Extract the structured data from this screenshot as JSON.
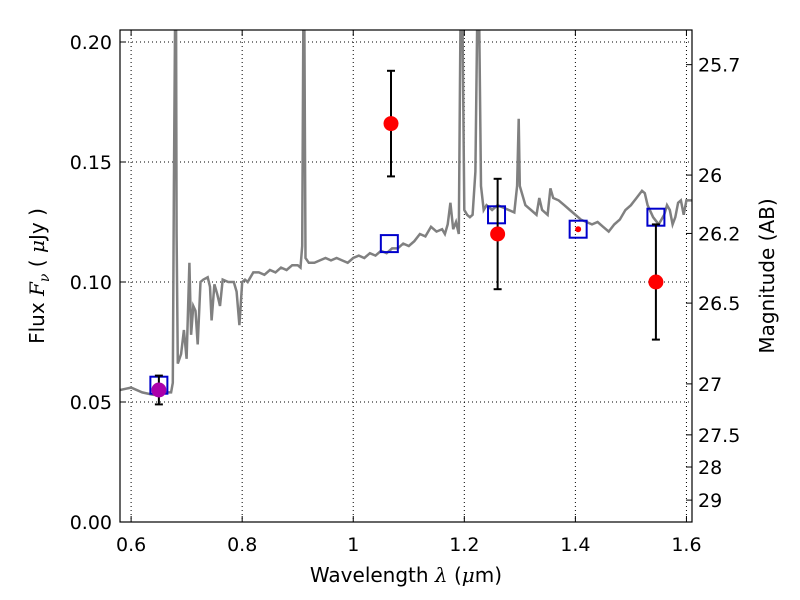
{
  "chart_data": {
    "type": "line",
    "xlabel": {
      "prefix": "Wavelength  ",
      "symbol": "λ",
      "unit_open": " (",
      "unit_mu": "μ",
      "unit_rest": "m)"
    },
    "ylabel": {
      "prefix": "Flux  ",
      "symbol": "F",
      "subscript": "ν",
      "unit_open": "  ( ",
      "unit_mu": "μ",
      "unit_rest": "Jy )"
    },
    "ylabel_right": "Magnitude (AB)",
    "xlim": [
      0.58,
      1.61
    ],
    "ylim": [
      0.0,
      0.205
    ],
    "grid": true,
    "x_ticks": [
      {
        "value": 0.6,
        "label": "0.6"
      },
      {
        "value": 0.8,
        "label": "0.8"
      },
      {
        "value": 1.0,
        "label": "1"
      },
      {
        "value": 1.2,
        "label": "1.2"
      },
      {
        "value": 1.4,
        "label": "1.4"
      },
      {
        "value": 1.6,
        "label": "1.6"
      }
    ],
    "y_ticks": [
      {
        "value": 0.0,
        "label": "0.00"
      },
      {
        "value": 0.05,
        "label": "0.05"
      },
      {
        "value": 0.1,
        "label": "0.10"
      },
      {
        "value": 0.15,
        "label": "0.15"
      },
      {
        "value": 0.2,
        "label": "0.20"
      }
    ],
    "right_ticks": [
      {
        "value": 25.7,
        "label": "25.7"
      },
      {
        "value": 26,
        "label": "26"
      },
      {
        "value": 26.2,
        "label": "26.2"
      },
      {
        "value": 26.5,
        "label": "26.5"
      },
      {
        "value": 27,
        "label": "27"
      },
      {
        "value": 27.5,
        "label": "27.5"
      },
      {
        "value": 28,
        "label": "28"
      },
      {
        "value": 29,
        "label": "29"
      }
    ],
    "series": [
      {
        "style": "model_spectrum",
        "color": "#808080",
        "points": [
          [
            0.58,
            0.055
          ],
          [
            0.6,
            0.056
          ],
          [
            0.62,
            0.054
          ],
          [
            0.64,
            0.053
          ],
          [
            0.66,
            0.054
          ],
          [
            0.672,
            0.054
          ],
          [
            0.675,
            0.058
          ],
          [
            0.677,
            0.14
          ],
          [
            0.679,
            0.205
          ],
          [
            0.681,
            0.205
          ],
          [
            0.682,
            0.12
          ],
          [
            0.684,
            0.066
          ],
          [
            0.69,
            0.07
          ],
          [
            0.695,
            0.08
          ],
          [
            0.7,
            0.068
          ],
          [
            0.705,
            0.108
          ],
          [
            0.708,
            0.078
          ],
          [
            0.712,
            0.09
          ],
          [
            0.716,
            0.088
          ],
          [
            0.72,
            0.074
          ],
          [
            0.725,
            0.1
          ],
          [
            0.73,
            0.101
          ],
          [
            0.738,
            0.102
          ],
          [
            0.742,
            0.098
          ],
          [
            0.745,
            0.084
          ],
          [
            0.75,
            0.099
          ],
          [
            0.755,
            0.095
          ],
          [
            0.76,
            0.09
          ],
          [
            0.765,
            0.101
          ],
          [
            0.775,
            0.1
          ],
          [
            0.785,
            0.1
          ],
          [
            0.79,
            0.096
          ],
          [
            0.795,
            0.082
          ],
          [
            0.8,
            0.1
          ],
          [
            0.805,
            0.101
          ],
          [
            0.81,
            0.1
          ],
          [
            0.82,
            0.104
          ],
          [
            0.83,
            0.104
          ],
          [
            0.84,
            0.103
          ],
          [
            0.85,
            0.105
          ],
          [
            0.86,
            0.104
          ],
          [
            0.87,
            0.106
          ],
          [
            0.88,
            0.105
          ],
          [
            0.89,
            0.107
          ],
          [
            0.9,
            0.107
          ],
          [
            0.905,
            0.106
          ],
          [
            0.908,
            0.115
          ],
          [
            0.91,
            0.205
          ],
          [
            0.912,
            0.205
          ],
          [
            0.914,
            0.11
          ],
          [
            0.92,
            0.108
          ],
          [
            0.93,
            0.108
          ],
          [
            0.94,
            0.109
          ],
          [
            0.95,
            0.11
          ],
          [
            0.96,
            0.109
          ],
          [
            0.97,
            0.11
          ],
          [
            0.98,
            0.109
          ],
          [
            0.99,
            0.108
          ],
          [
            1.0,
            0.11
          ],
          [
            1.01,
            0.111
          ],
          [
            1.02,
            0.11
          ],
          [
            1.03,
            0.112
          ],
          [
            1.04,
            0.111
          ],
          [
            1.05,
            0.113
          ],
          [
            1.06,
            0.112
          ],
          [
            1.07,
            0.114
          ],
          [
            1.08,
            0.114
          ],
          [
            1.09,
            0.116
          ],
          [
            1.1,
            0.115
          ],
          [
            1.11,
            0.117
          ],
          [
            1.12,
            0.12
          ],
          [
            1.13,
            0.119
          ],
          [
            1.14,
            0.123
          ],
          [
            1.15,
            0.121
          ],
          [
            1.16,
            0.122
          ],
          [
            1.165,
            0.12
          ],
          [
            1.17,
            0.124
          ],
          [
            1.175,
            0.133
          ],
          [
            1.18,
            0.122
          ],
          [
            1.185,
            0.125
          ],
          [
            1.19,
            0.12
          ],
          [
            1.193,
            0.205
          ],
          [
            1.197,
            0.205
          ],
          [
            1.2,
            0.13
          ],
          [
            1.205,
            0.128
          ],
          [
            1.21,
            0.127
          ],
          [
            1.215,
            0.128
          ],
          [
            1.22,
            0.146
          ],
          [
            1.223,
            0.205
          ],
          [
            1.227,
            0.205
          ],
          [
            1.23,
            0.14
          ],
          [
            1.235,
            0.13
          ],
          [
            1.24,
            0.132
          ],
          [
            1.25,
            0.13
          ],
          [
            1.26,
            0.132
          ],
          [
            1.27,
            0.131
          ],
          [
            1.28,
            0.13
          ],
          [
            1.29,
            0.129
          ],
          [
            1.295,
            0.14
          ],
          [
            1.298,
            0.168
          ],
          [
            1.3,
            0.14
          ],
          [
            1.31,
            0.132
          ],
          [
            1.32,
            0.13
          ],
          [
            1.33,
            0.128
          ],
          [
            1.335,
            0.135
          ],
          [
            1.34,
            0.13
          ],
          [
            1.35,
            0.128
          ],
          [
            1.355,
            0.139
          ],
          [
            1.36,
            0.135
          ],
          [
            1.37,
            0.134
          ],
          [
            1.38,
            0.132
          ],
          [
            1.39,
            0.13
          ],
          [
            1.4,
            0.128
          ],
          [
            1.41,
            0.126
          ],
          [
            1.42,
            0.125
          ],
          [
            1.43,
            0.124
          ],
          [
            1.44,
            0.125
          ],
          [
            1.45,
            0.123
          ],
          [
            1.46,
            0.121
          ],
          [
            1.47,
            0.124
          ],
          [
            1.48,
            0.126
          ],
          [
            1.49,
            0.13
          ],
          [
            1.5,
            0.132
          ],
          [
            1.51,
            0.135
          ],
          [
            1.52,
            0.138
          ],
          [
            1.525,
            0.137
          ],
          [
            1.53,
            0.132
          ],
          [
            1.54,
            0.127
          ],
          [
            1.55,
            0.124
          ],
          [
            1.56,
            0.128
          ],
          [
            1.565,
            0.132
          ],
          [
            1.57,
            0.13
          ],
          [
            1.575,
            0.124
          ],
          [
            1.58,
            0.127
          ],
          [
            1.585,
            0.133
          ],
          [
            1.59,
            0.134
          ],
          [
            1.595,
            0.128
          ],
          [
            1.6,
            0.134
          ],
          [
            1.61,
            0.134
          ]
        ]
      },
      {
        "style": "model_photometry_squares",
        "color": "#0000cc",
        "points": [
          [
            0.65,
            0.057
          ],
          [
            1.065,
            0.116
          ],
          [
            1.258,
            0.128
          ],
          [
            1.405,
            0.122
          ],
          [
            1.545,
            0.127
          ]
        ]
      },
      {
        "style": "observed_points",
        "points": [
          {
            "x": 0.65,
            "y": 0.055,
            "err": 0.006,
            "color": "#aa00aa"
          },
          {
            "x": 1.068,
            "y": 0.166,
            "err": 0.022,
            "color": "#ff0000"
          },
          {
            "x": 1.26,
            "y": 0.12,
            "err": 0.023,
            "color": "#ff0000"
          },
          {
            "x": 1.405,
            "y": 0.122,
            "err": 0,
            "color": "#ff0000",
            "small": true
          },
          {
            "x": 1.545,
            "y": 0.1,
            "err": 0.024,
            "color": "#ff0000"
          }
        ]
      }
    ]
  }
}
